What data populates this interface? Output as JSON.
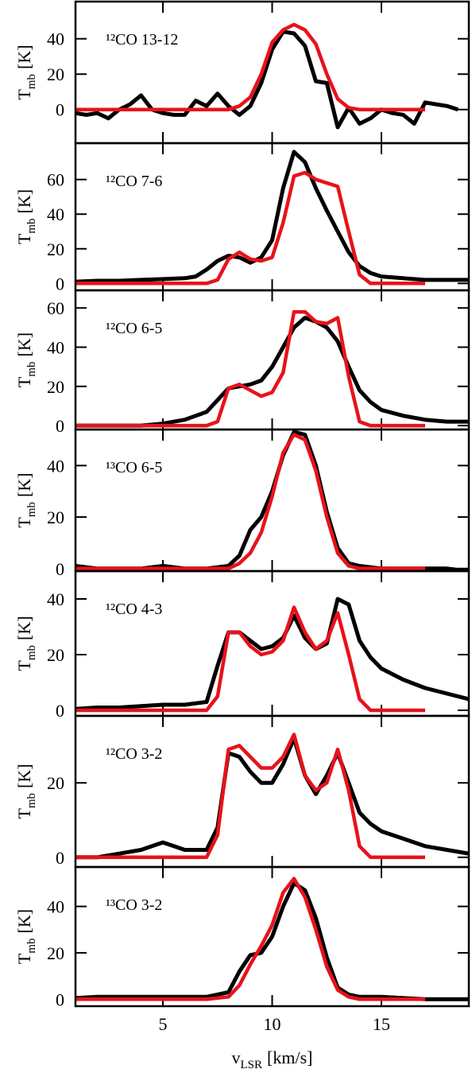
{
  "chart_data": [
    {
      "type": "line",
      "title": "¹²CO 13-12",
      "ylabel": {
        "main": "T",
        "sub": "mb",
        "unit": "[K]"
      },
      "xlim": [
        1,
        19
      ],
      "xticks": [
        5,
        10,
        15
      ],
      "ylim": [
        -19,
        61
      ],
      "yticks": [
        0,
        20,
        40
      ],
      "series": [
        {
          "color": "#000000",
          "x": [
            1,
            1.5,
            2,
            2.5,
            3,
            3.5,
            4,
            4.5,
            5,
            5.5,
            6,
            6.5,
            7,
            7.5,
            8,
            8.5,
            9,
            9.5,
            10,
            10.5,
            11,
            11.5,
            12,
            12.5,
            13,
            13.5,
            14,
            14.5,
            15,
            15.5,
            16,
            16.5,
            17,
            17.5,
            18,
            18.5
          ],
          "values": [
            -2,
            -3,
            -2,
            -5,
            0,
            3,
            8,
            0,
            -2,
            -3,
            -3,
            5,
            2,
            9,
            2,
            -3,
            2,
            15,
            34,
            44,
            43,
            36,
            16,
            15,
            -10,
            1,
            -8,
            -5,
            0,
            -2,
            -3,
            -8,
            4,
            3,
            2,
            0
          ]
        },
        {
          "color": "#e8121b",
          "x": [
            1,
            8,
            8.5,
            9,
            9.5,
            10,
            10.5,
            11,
            11.5,
            12,
            12.5,
            13,
            13.5,
            14,
            17
          ],
          "values": [
            0,
            0,
            2,
            7,
            20,
            38,
            45,
            48,
            45,
            37,
            20,
            6,
            1,
            0,
            0
          ]
        }
      ]
    },
    {
      "type": "line",
      "title": "¹²CO 7-6",
      "ylabel": {
        "main": "T",
        "sub": "mb",
        "unit": "[K]"
      },
      "xlim": [
        1,
        19
      ],
      "xticks": [
        5,
        10,
        15
      ],
      "ylim": [
        -4,
        81
      ],
      "yticks": [
        0,
        20,
        40,
        60
      ],
      "series": [
        {
          "color": "#000000",
          "x": [
            1,
            2,
            3,
            4,
            5,
            6,
            6.5,
            7,
            7.5,
            8,
            8.5,
            9,
            9.5,
            10,
            10.5,
            11,
            11.5,
            12,
            12.5,
            13,
            13.5,
            14,
            14.5,
            15,
            16,
            17,
            18,
            19
          ],
          "values": [
            1,
            1.5,
            1.5,
            2,
            2.5,
            3,
            4,
            8,
            13,
            16,
            15,
            12,
            15,
            25,
            55,
            76,
            70,
            55,
            42,
            30,
            18,
            10,
            6,
            4,
            3,
            2,
            2,
            2
          ]
        },
        {
          "color": "#e8121b",
          "x": [
            1,
            7,
            7.5,
            8,
            8.5,
            9,
            9.5,
            10,
            10.5,
            11,
            11.5,
            12,
            13,
            13.5,
            14,
            14.5,
            17
          ],
          "values": [
            0,
            0,
            2,
            14,
            18,
            14,
            13,
            15,
            35,
            62,
            64,
            60,
            56,
            30,
            5,
            0,
            0
          ]
        }
      ]
    },
    {
      "type": "line",
      "title": "¹²CO 6-5",
      "ylabel": {
        "main": "T",
        "sub": "mb",
        "unit": "[K]"
      },
      "xlim": [
        1,
        19
      ],
      "xticks": [
        5,
        10,
        15
      ],
      "ylim": [
        -2,
        69
      ],
      "yticks": [
        0,
        20,
        40,
        60
      ],
      "series": [
        {
          "color": "#000000",
          "x": [
            1,
            4,
            5,
            6,
            7,
            7.5,
            8,
            8.5,
            9,
            9.5,
            10,
            10.5,
            11,
            11.5,
            12,
            12.5,
            13,
            13.5,
            14,
            14.5,
            15,
            16,
            17,
            18,
            19
          ],
          "values": [
            0,
            0,
            1,
            3,
            7,
            13,
            19,
            20,
            21,
            23,
            30,
            40,
            50,
            55,
            53,
            50,
            43,
            30,
            18,
            12,
            8,
            5,
            3,
            2,
            2
          ]
        },
        {
          "color": "#e8121b",
          "x": [
            1,
            7,
            7.5,
            8,
            8.5,
            9,
            9.5,
            10,
            10.5,
            11,
            11.5,
            12,
            12.5,
            13,
            13.5,
            14,
            14.5,
            17
          ],
          "values": [
            0,
            0,
            2,
            19,
            21,
            18,
            15,
            17,
            27,
            58,
            58,
            53,
            52,
            55,
            25,
            2,
            0,
            0
          ]
        }
      ]
    },
    {
      "type": "line",
      "title": "¹³CO 6-5",
      "ylabel": {
        "main": "T",
        "sub": "mb",
        "unit": "[K]"
      },
      "xlim": [
        1,
        19
      ],
      "xticks": [
        5,
        10,
        15
      ],
      "ylim": [
        -1,
        54
      ],
      "yticks": [
        0,
        20,
        40
      ],
      "series": [
        {
          "color": "#000000",
          "x": [
            1,
            2,
            3,
            4,
            5,
            6,
            7,
            8,
            8.5,
            9,
            9.5,
            10,
            10.5,
            11,
            11.5,
            12,
            12.5,
            13,
            13.5,
            14,
            15,
            16,
            17,
            18,
            19
          ],
          "values": [
            1,
            0,
            0,
            0,
            1,
            0,
            0,
            1,
            5,
            15,
            20,
            30,
            44,
            53,
            52,
            40,
            22,
            8,
            2,
            1,
            0,
            0,
            0,
            0,
            -1
          ]
        },
        {
          "color": "#e8121b",
          "x": [
            1,
            8,
            8.5,
            9,
            9.5,
            10,
            10.5,
            11,
            11.5,
            12,
            12.5,
            13,
            13.5,
            14,
            17
          ],
          "values": [
            0,
            0,
            2,
            6,
            14,
            28,
            45,
            52,
            50,
            38,
            20,
            6,
            1,
            0,
            0
          ]
        }
      ]
    },
    {
      "type": "line",
      "title": "¹²CO 4-3",
      "ylabel": {
        "main": "T",
        "sub": "mb",
        "unit": "[K]"
      },
      "xlim": [
        1,
        19
      ],
      "xticks": [
        5,
        10,
        15
      ],
      "ylim": [
        -2,
        50
      ],
      "yticks": [
        0,
        20,
        40
      ],
      "series": [
        {
          "color": "#000000",
          "x": [
            1,
            2,
            3,
            4,
            5,
            6,
            7,
            7.5,
            8,
            8.5,
            9,
            9.5,
            10,
            10.5,
            11,
            11.5,
            12,
            12.5,
            13,
            13.5,
            14,
            14.5,
            15,
            16,
            17,
            18,
            19
          ],
          "values": [
            0.5,
            1,
            1,
            1.5,
            2,
            2,
            3,
            16,
            28,
            28,
            25,
            22,
            23,
            26,
            34,
            26,
            22,
            24,
            40,
            38,
            25,
            19,
            15,
            11,
            8,
            6,
            4
          ]
        },
        {
          "color": "#e8121b",
          "x": [
            1,
            7,
            7.5,
            8,
            8.5,
            9,
            9.5,
            10,
            10.5,
            11,
            11.5,
            12,
            12.5,
            13,
            13.5,
            14,
            14.5,
            17
          ],
          "values": [
            0,
            0,
            5,
            28,
            28,
            23,
            20,
            21,
            25,
            37,
            28,
            22,
            25,
            35,
            20,
            4,
            0,
            0
          ]
        }
      ]
    },
    {
      "type": "line",
      "title": "¹²CO 3-2",
      "ylabel": {
        "main": "T",
        "sub": "mb",
        "unit": "[K]"
      },
      "xlim": [
        1,
        19
      ],
      "xticks": [
        5,
        10,
        15
      ],
      "ylim": [
        -2.6,
        38
      ],
      "yticks": [
        0,
        20
      ],
      "series": [
        {
          "color": "#000000",
          "x": [
            1,
            2,
            3,
            4,
            4.5,
            5,
            5.5,
            6,
            7,
            7.5,
            8,
            8.5,
            9,
            9.5,
            10,
            10.5,
            11,
            11.5,
            12,
            12.5,
            13,
            13.5,
            14,
            14.5,
            15,
            16,
            17,
            18,
            19
          ],
          "values": [
            0,
            0,
            1,
            2,
            3,
            4,
            3,
            2,
            2,
            8,
            28,
            27,
            23,
            20,
            20,
            25,
            32,
            22,
            17,
            22,
            28,
            20,
            12,
            9,
            7,
            5,
            3,
            2,
            1
          ]
        },
        {
          "color": "#e8121b",
          "x": [
            1,
            7,
            7.5,
            8,
            8.5,
            9,
            9.5,
            10,
            10.5,
            11,
            11.5,
            12,
            12.5,
            13,
            13.5,
            14,
            14.5,
            17
          ],
          "values": [
            0,
            0,
            6,
            29,
            30,
            27,
            24,
            24,
            27,
            33,
            22,
            18,
            20,
            29,
            18,
            3,
            0,
            0
          ]
        }
      ]
    },
    {
      "type": "line",
      "title": "¹³CO 3-2",
      "ylabel": {
        "main": "T",
        "sub": "mb",
        "unit": "[K]"
      },
      "xlabel": {
        "main": "v",
        "sub": "LSR",
        "unit": "[km/s]"
      },
      "xlim": [
        1,
        19
      ],
      "xticks": [
        5,
        10,
        15
      ],
      "ylim": [
        -3,
        57
      ],
      "yticks": [
        0,
        20,
        40
      ],
      "series": [
        {
          "color": "#000000",
          "x": [
            1,
            2,
            3,
            4,
            5,
            6,
            7,
            8,
            8.5,
            9,
            9.5,
            10,
            10.5,
            11,
            11.5,
            12,
            12.5,
            13,
            13.5,
            14,
            15,
            17,
            19
          ],
          "values": [
            0.5,
            1,
            1,
            1,
            1,
            1,
            1,
            3,
            12,
            19,
            20,
            27,
            40,
            50,
            47,
            35,
            18,
            5,
            2,
            1,
            1,
            0,
            0
          ]
        },
        {
          "color": "#e8121b",
          "x": [
            1,
            7,
            8,
            8.5,
            9,
            9.5,
            10,
            10.5,
            11,
            11.5,
            12,
            12.5,
            13,
            13.5,
            14,
            17
          ],
          "values": [
            0,
            0,
            1,
            6,
            15,
            23,
            32,
            46,
            52,
            44,
            30,
            14,
            4,
            1,
            0,
            0
          ]
        }
      ]
    }
  ]
}
